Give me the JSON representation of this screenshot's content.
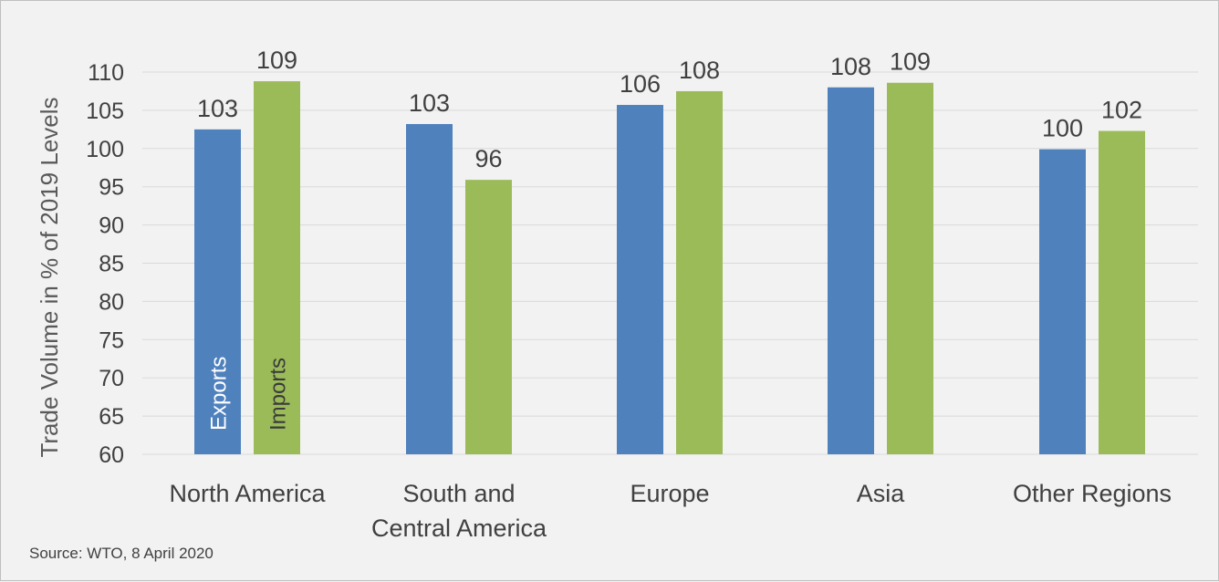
{
  "chart_data": {
    "type": "bar",
    "categories": [
      [
        "North America"
      ],
      [
        "South and",
        "Central America"
      ],
      [
        "Europe"
      ],
      [
        "Asia"
      ],
      [
        "Other Regions"
      ]
    ],
    "series": [
      {
        "name": "Exports",
        "values": [
          103,
          103,
          106,
          108,
          100
        ],
        "data_labels": [
          "103",
          "103",
          "106",
          "108",
          "100"
        ]
      },
      {
        "name": "Imports",
        "values": [
          109,
          96,
          108,
          109,
          102
        ],
        "data_labels": [
          "109",
          "96",
          "108",
          "109",
          "102"
        ]
      }
    ],
    "bar_values_precise": {
      "Exports": [
        102.5,
        103.2,
        105.7,
        108.0,
        99.9
      ],
      "Imports": [
        108.8,
        95.9,
        107.5,
        108.6,
        102.3
      ]
    },
    "title": "",
    "xlabel": "",
    "ylabel": "Trade Volume in % of 2019 Levels",
    "ylim": [
      60,
      110
    ],
    "yticks": [
      60,
      65,
      70,
      75,
      80,
      85,
      90,
      95,
      100,
      105,
      110
    ],
    "grid": true,
    "legend": "series names printed inside first category bars",
    "colors": {
      "Exports": "#4f81bd",
      "Imports": "#9bbb59",
      "grid": "#d9d9d9",
      "text": "#404040"
    },
    "source": "Source: WTO, 8 April 2020"
  }
}
